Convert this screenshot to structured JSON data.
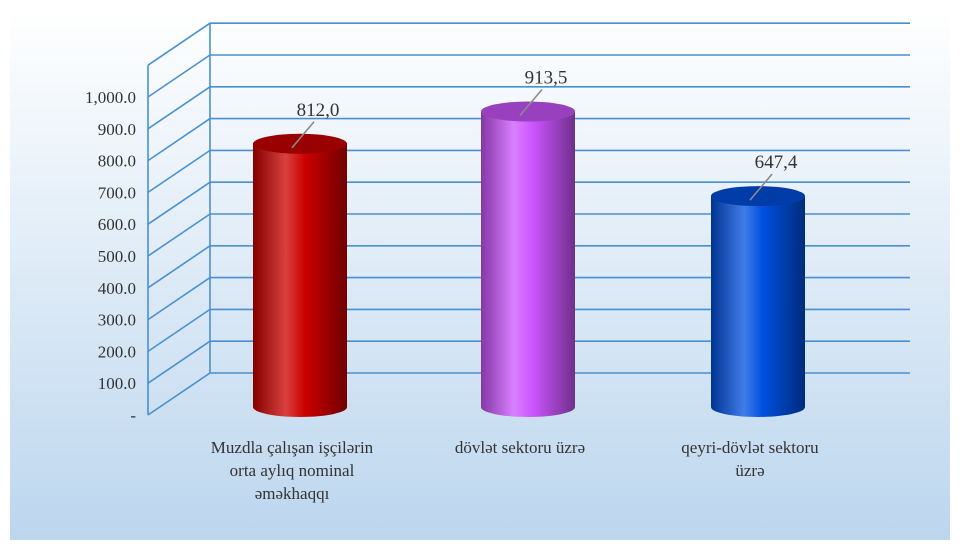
{
  "chart_data": {
    "type": "bar",
    "style": "3d-cylinder",
    "categories": [
      [
        "Muzdla çalışan işçilərin",
        "orta aylıq nominal",
        "əməkhaqqı"
      ],
      [
        "dövlət sektoru üzrə"
      ],
      [
        "qeyri-dövlət sektoru",
        "üzrə"
      ]
    ],
    "values": [
      812.0,
      913.5,
      647.4
    ],
    "data_labels": [
      "812,0",
      "913,5",
      "647,4"
    ],
    "bar_colors": [
      "#cc0000",
      "#cc55ff",
      "#0050e0"
    ],
    "yticks": [
      {
        "value": 0,
        "label": "-"
      },
      {
        "value": 100,
        "label": "100.0"
      },
      {
        "value": 200,
        "label": "200.0"
      },
      {
        "value": 300,
        "label": "300.0"
      },
      {
        "value": 400,
        "label": "400.0"
      },
      {
        "value": 500,
        "label": "500.0"
      },
      {
        "value": 600,
        "label": "600.0"
      },
      {
        "value": 700,
        "label": "700.0"
      },
      {
        "value": 800,
        "label": "800.0"
      },
      {
        "value": 900,
        "label": "900.0"
      },
      {
        "value": 1000,
        "label": "1,000.0"
      },
      {
        "value": 1100,
        "label": ""
      }
    ],
    "ylim": [
      0,
      1100
    ],
    "grid": true,
    "title": "",
    "xlabel": "",
    "ylabel": "",
    "colors": {
      "background_top": "#ffffff",
      "background_bottom": "#bcd6ee",
      "gridline": "#4a90d0"
    }
  }
}
